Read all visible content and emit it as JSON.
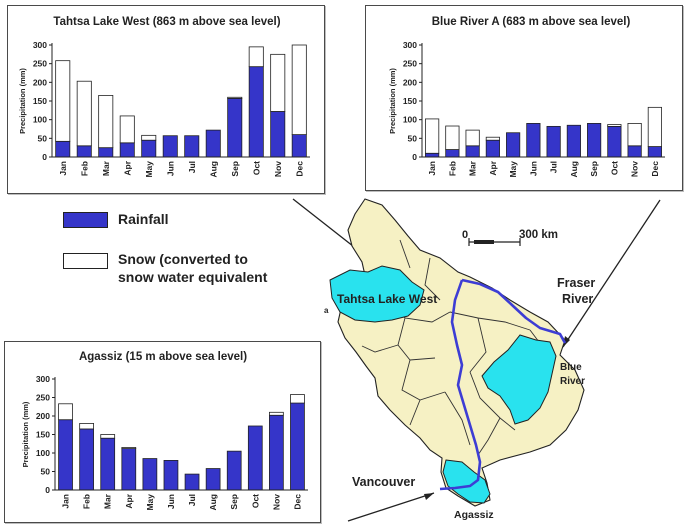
{
  "colors": {
    "rain": "#3535c9",
    "snow": "#ffffff",
    "outline": "#222222",
    "basin": "#f6f1c4",
    "highlight": "#29e2ee",
    "river": "#3d3dd4"
  },
  "legend": {
    "rain_label": "Rainfall",
    "snow_line1": "Snow (converted to",
    "snow_line2": "snow water equivalent"
  },
  "map": {
    "scale_zero": "0",
    "scale_label": "300 km",
    "fraser_line1": "Fraser",
    "fraser_line2": "River",
    "tahtsa_label": "Tahtsa Lake West",
    "blue_line1": "Blue",
    "blue_line2": "River",
    "vancouver_label": "Vancouver",
    "agassiz_label": "Agassiz",
    "edge_letter": "a"
  },
  "chart_data": [
    {
      "type": "bar",
      "title": "Tahtsa Lake West (863 m above sea level)",
      "ylabel": "Precipitation (mm)",
      "ylim": [
        0,
        300
      ],
      "yticks": [
        "0",
        "50",
        "100",
        "150",
        "200",
        "250",
        "300"
      ],
      "categories": [
        "Jan",
        "Feb",
        "Mar",
        "Apr",
        "May",
        "Jun",
        "Jul",
        "Aug",
        "Sep",
        "Oct",
        "Nov",
        "Dec"
      ],
      "stacked": true,
      "series": [
        {
          "name": "Rainfall",
          "values": [
            42,
            30,
            25,
            38,
            45,
            57,
            57,
            72,
            157,
            242,
            122,
            60
          ]
        },
        {
          "name": "Snow (converted to snow water equivalent",
          "values": [
            216,
            173,
            140,
            72,
            13,
            0,
            0,
            0,
            3,
            53,
            153,
            240
          ]
        }
      ]
    },
    {
      "type": "bar",
      "title": "Blue River A (683 m above sea level)",
      "ylabel": "Precipitation (mm)",
      "ylim": [
        0,
        300
      ],
      "yticks": [
        "0",
        "50",
        "100",
        "150",
        "200",
        "250",
        "300"
      ],
      "categories": [
        "Jan",
        "Feb",
        "Mar",
        "Apr",
        "May",
        "Jun",
        "Jul",
        "Aug",
        "Sep",
        "Oct",
        "Nov",
        "Dec"
      ],
      "stacked": true,
      "series": [
        {
          "name": "Rainfall",
          "values": [
            10,
            20,
            30,
            45,
            65,
            90,
            82,
            85,
            90,
            82,
            30,
            28
          ]
        },
        {
          "name": "Snow (converted to snow water equivalent",
          "values": [
            92,
            63,
            42,
            8,
            0,
            0,
            0,
            0,
            0,
            5,
            60,
            105
          ]
        }
      ]
    },
    {
      "type": "bar",
      "title": "Agassiz (15 m above sea level)",
      "ylabel": "Precipitation (mm)",
      "ylim": [
        0,
        300
      ],
      "yticks": [
        "0",
        "50",
        "100",
        "150",
        "200",
        "250",
        "300"
      ],
      "categories": [
        "Jan",
        "Feb",
        "Mar",
        "Apr",
        "May",
        "Jun",
        "Jul",
        "Aug",
        "Sep",
        "Oct",
        "Nov",
        "Dec"
      ],
      "stacked": true,
      "series": [
        {
          "name": "Rainfall",
          "values": [
            190,
            165,
            140,
            112,
            85,
            80,
            43,
            58,
            105,
            173,
            202,
            235
          ]
        },
        {
          "name": "Snow (converted to snow water equivalent",
          "values": [
            43,
            15,
            10,
            3,
            0,
            0,
            0,
            0,
            0,
            0,
            8,
            23
          ]
        }
      ]
    }
  ]
}
